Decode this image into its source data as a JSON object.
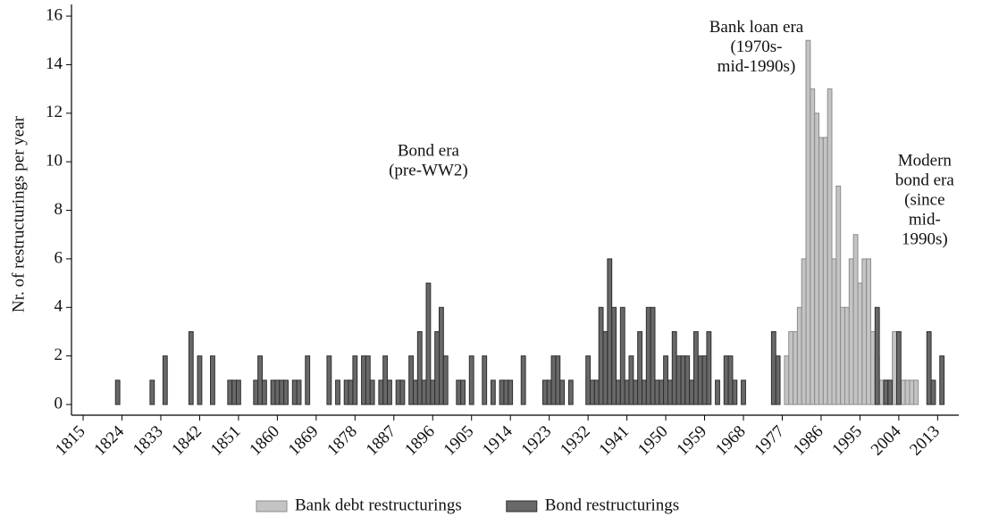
{
  "chart_data": {
    "type": "bar",
    "ylabel": "Nr. of restructurings per year",
    "xlim": [
      1812.3,
      2017.9
    ],
    "ylim": [
      -0.44,
      16.48
    ],
    "xticks": [
      1815,
      1824,
      1833,
      1842,
      1851,
      1860,
      1869,
      1878,
      1887,
      1896,
      1905,
      1914,
      1923,
      1932,
      1941,
      1950,
      1959,
      1968,
      1977,
      1986,
      1995,
      2004,
      2013
    ],
    "yticks": [
      0,
      2,
      4,
      6,
      8,
      10,
      12,
      14,
      16
    ],
    "legend": "bottom",
    "annotations": [
      {
        "x": 1895,
        "y": 10.4,
        "lines": [
          "Bond era",
          "(pre-WW2)"
        ]
      },
      {
        "x": 1971,
        "y": 15.5,
        "lines": [
          "Bank loan era",
          "(1970s-",
          "mid-1990s)"
        ]
      },
      {
        "x": 2010,
        "y": 10,
        "lines": [
          "Modern",
          "bond era",
          "(since",
          "mid-",
          "1990s)"
        ]
      }
    ],
    "series": [
      {
        "name": "Bank debt restructurings",
        "color": "#c4c4c4",
        "edge": "#8c8c8c",
        "x": [
          1978,
          1979,
          1980,
          1981,
          1982,
          1983,
          1984,
          1985,
          1986,
          1987,
          1988,
          1989,
          1990,
          1991,
          1992,
          1993,
          1994,
          1995,
          1996,
          1997,
          1998,
          1999,
          2000,
          2001,
          2002,
          2003,
          2004,
          2005,
          2006,
          2007,
          2008
        ],
        "values": [
          2,
          3,
          3,
          4,
          6,
          15,
          13,
          12,
          11,
          11,
          13,
          6,
          9,
          4,
          4,
          6,
          7,
          5,
          6,
          6,
          3,
          2,
          1,
          1,
          1,
          3,
          1,
          1,
          1,
          1,
          1
        ]
      },
      {
        "name": "Bond restructurings",
        "color": "#686868",
        "edge": "#2e2e2e",
        "x": [
          1823,
          1831,
          1834,
          1840,
          1842,
          1845,
          1849,
          1850,
          1851,
          1855,
          1856,
          1857,
          1859,
          1860,
          1861,
          1862,
          1864,
          1865,
          1867,
          1872,
          1874,
          1876,
          1877,
          1878,
          1880,
          1881,
          1882,
          1884,
          1885,
          1886,
          1888,
          1889,
          1891,
          1892,
          1893,
          1894,
          1895,
          1896,
          1897,
          1898,
          1899,
          1902,
          1903,
          1905,
          1908,
          1910,
          1912,
          1913,
          1914,
          1917,
          1922,
          1923,
          1924,
          1925,
          1926,
          1928,
          1932,
          1933,
          1934,
          1935,
          1936,
          1937,
          1938,
          1939,
          1940,
          1941,
          1942,
          1943,
          1944,
          1945,
          1946,
          1947,
          1948,
          1949,
          1950,
          1951,
          1952,
          1953,
          1954,
          1955,
          1956,
          1957,
          1958,
          1959,
          1960,
          1962,
          1964,
          1965,
          1966,
          1968,
          1975,
          1976,
          1999,
          2001,
          2002,
          2004,
          2011,
          2012,
          2014
        ],
        "values": [
          1,
          1,
          2,
          3,
          2,
          2,
          1,
          1,
          1,
          1,
          2,
          1,
          1,
          1,
          1,
          1,
          1,
          1,
          2,
          2,
          1,
          1,
          1,
          2,
          2,
          2,
          1,
          1,
          2,
          1,
          1,
          1,
          2,
          1,
          3,
          1,
          5,
          1,
          3,
          4,
          2,
          1,
          1,
          2,
          2,
          1,
          1,
          1,
          1,
          2,
          1,
          1,
          2,
          2,
          1,
          1,
          2,
          1,
          1,
          4,
          3,
          6,
          4,
          1,
          4,
          1,
          2,
          1,
          3,
          1,
          4,
          4,
          1,
          1,
          2,
          1,
          3,
          2,
          2,
          2,
          1,
          3,
          2,
          2,
          3,
          1,
          2,
          2,
          1,
          1,
          3,
          2,
          4,
          1,
          1,
          3,
          3,
          1,
          2
        ]
      }
    ]
  }
}
